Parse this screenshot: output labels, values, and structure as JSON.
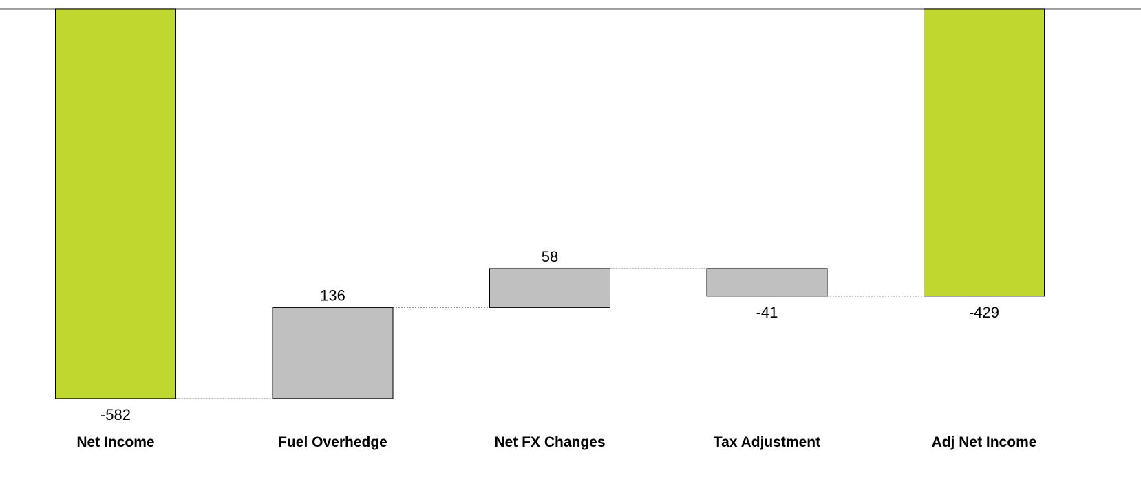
{
  "chart_data": {
    "type": "waterfall",
    "categories": [
      "Net Income",
      "Fuel Overhedge",
      "Net FX Changes",
      "Tax Adjustment",
      "Adj Net Income"
    ],
    "values": [
      -582,
      136,
      58,
      -41,
      -429
    ],
    "value_labels": [
      "-582",
      "136",
      "58",
      "-41",
      "-429"
    ],
    "kinds": [
      "total",
      "delta",
      "delta",
      "delta",
      "total"
    ],
    "baseline": 0,
    "title": "",
    "xlabel": "",
    "ylabel": "",
    "grid": false,
    "legend": "none",
    "colors": {
      "total": "#c0d72f",
      "delta": "#c0c0c0",
      "outline": "#000000",
      "connector": "#808080",
      "axis": "#808080"
    }
  }
}
